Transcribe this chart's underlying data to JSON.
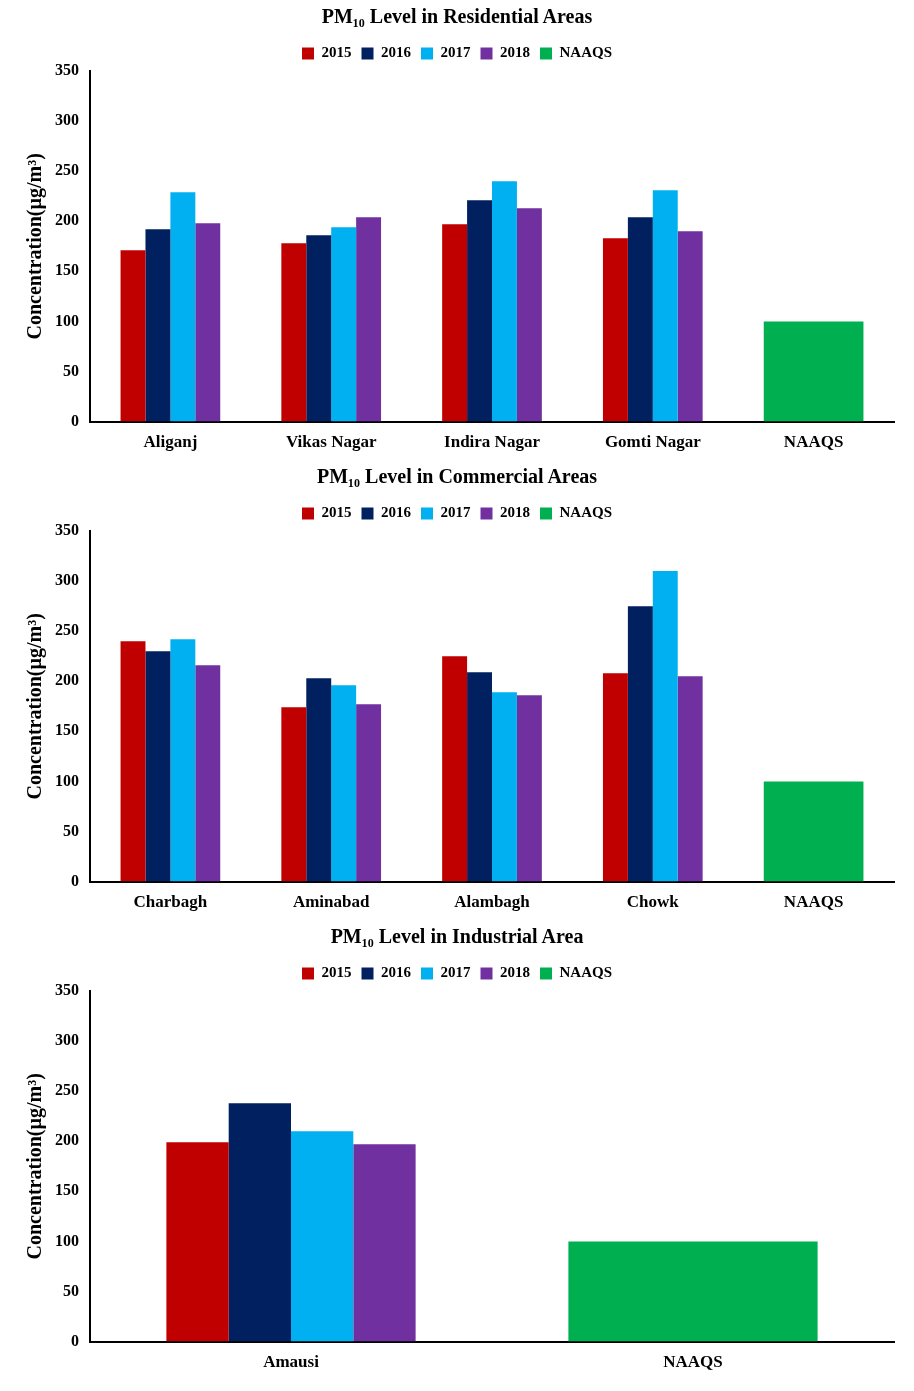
{
  "chart_data": [
    {
      "type": "bar",
      "title": "PM₁₀ Level in Residential Areas",
      "ylabel": "Concentration(µg/m³)",
      "categories": [
        "Aliganj",
        "Vikas Nagar",
        "Indira Nagar",
        "Gomti Nagar",
        "NAAQS"
      ],
      "ylim": [
        0,
        350
      ],
      "yticks": [
        0,
        50,
        100,
        150,
        200,
        250,
        300,
        350
      ],
      "grid": false,
      "legend": "top",
      "series": [
        {
          "name": "2015",
          "color": "#c00000",
          "values": [
            171,
            178,
            197,
            183,
            null
          ]
        },
        {
          "name": "2016",
          "color": "#002060",
          "values": [
            192,
            186,
            221,
            204,
            null
          ]
        },
        {
          "name": "2017",
          "color": "#00b0f0",
          "values": [
            229,
            194,
            240,
            231,
            null
          ]
        },
        {
          "name": "2018",
          "color": "#7030a0",
          "values": [
            198,
            204,
            213,
            190,
            null
          ]
        },
        {
          "name": "NAAQS",
          "color": "#00b050",
          "values": [
            null,
            null,
            null,
            null,
            100
          ]
        }
      ]
    },
    {
      "type": "bar",
      "title": "PM₁₀ Level in Commercial Areas",
      "ylabel": "Concentration(µg/m³)",
      "categories": [
        "Charbagh",
        "Aminabad",
        "Alambagh",
        "Chowk",
        "NAAQS"
      ],
      "ylim": [
        0,
        350
      ],
      "yticks": [
        0,
        50,
        100,
        150,
        200,
        250,
        300,
        350
      ],
      "grid": false,
      "legend": "top",
      "series": [
        {
          "name": "2015",
          "color": "#c00000",
          "values": [
            240,
            174,
            225,
            208,
            null
          ]
        },
        {
          "name": "2016",
          "color": "#002060",
          "values": [
            230,
            203,
            209,
            275,
            null
          ]
        },
        {
          "name": "2017",
          "color": "#00b0f0",
          "values": [
            242,
            196,
            189,
            310,
            null
          ]
        },
        {
          "name": "2018",
          "color": "#7030a0",
          "values": [
            216,
            177,
            186,
            205,
            null
          ]
        },
        {
          "name": "NAAQS",
          "color": "#00b050",
          "values": [
            null,
            null,
            null,
            null,
            100
          ]
        }
      ]
    },
    {
      "type": "bar",
      "title": "PM₁₀ Level in Industrial Area",
      "ylabel": "Concentration(µg/m³)",
      "categories": [
        "Amausi",
        "NAAQS"
      ],
      "ylim": [
        0,
        350
      ],
      "yticks": [
        0,
        50,
        100,
        150,
        200,
        250,
        300,
        350
      ],
      "grid": false,
      "legend": "top",
      "series": [
        {
          "name": "2015",
          "color": "#c00000",
          "values": [
            199,
            null
          ]
        },
        {
          "name": "2016",
          "color": "#002060",
          "values": [
            238,
            null
          ]
        },
        {
          "name": "2017",
          "color": "#00b0f0",
          "values": [
            210,
            null
          ]
        },
        {
          "name": "2018",
          "color": "#7030a0",
          "values": [
            197,
            null
          ]
        },
        {
          "name": "NAAQS",
          "color": "#00b050",
          "values": [
            null,
            100
          ]
        }
      ]
    }
  ]
}
